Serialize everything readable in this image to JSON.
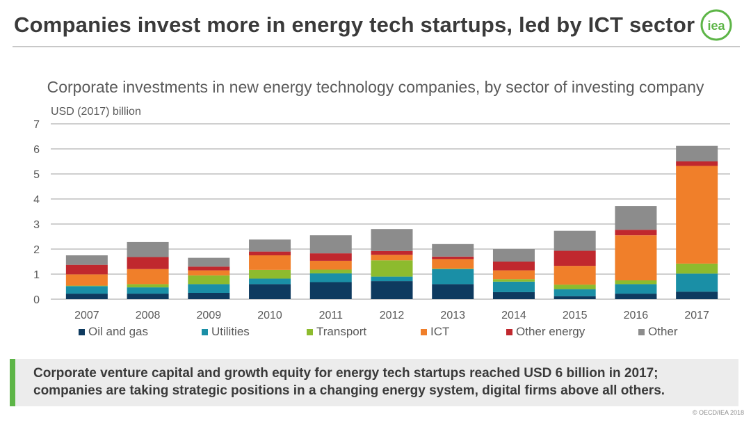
{
  "header": {
    "title": "Companies invest more in energy tech startups, led by ICT sector",
    "logo_text": "iea"
  },
  "chart_data": {
    "type": "bar",
    "stacked": true,
    "title": "Corporate investments in new energy technology companies, by sector of investing company",
    "ylabel": "USD (2017) billion",
    "xlabel": "",
    "ylim": [
      0,
      7
    ],
    "yticks": [
      0,
      1,
      2,
      3,
      4,
      5,
      6,
      7
    ],
    "grid": true,
    "legend_position": "bottom",
    "categories": [
      "2007",
      "2008",
      "2009",
      "2010",
      "2011",
      "2012",
      "2013",
      "2014",
      "2015",
      "2016",
      "2017"
    ],
    "series": [
      {
        "name": "Oil and gas",
        "color": "#0e3a5f",
        "values": [
          0.22,
          0.22,
          0.25,
          0.6,
          0.68,
          0.72,
          0.6,
          0.28,
          0.12,
          0.22,
          0.3
        ]
      },
      {
        "name": "Utilities",
        "color": "#1a8fa6",
        "values": [
          0.3,
          0.25,
          0.35,
          0.22,
          0.35,
          0.18,
          0.6,
          0.42,
          0.28,
          0.38,
          0.72
        ]
      },
      {
        "name": "Transport",
        "color": "#8dbb2e",
        "values": [
          0.02,
          0.13,
          0.35,
          0.35,
          0.15,
          0.65,
          0.02,
          0.1,
          0.18,
          0.15,
          0.4
        ]
      },
      {
        "name": "ICT",
        "color": "#f07f2a",
        "values": [
          0.45,
          0.6,
          0.2,
          0.58,
          0.35,
          0.22,
          0.38,
          0.35,
          0.75,
          1.8,
          3.9
        ]
      },
      {
        "name": "Other energy",
        "color": "#c0282e",
        "values": [
          0.38,
          0.48,
          0.15,
          0.15,
          0.3,
          0.15,
          0.1,
          0.35,
          0.6,
          0.22,
          0.18
        ]
      },
      {
        "name": "Other",
        "color": "#8c8c8c",
        "values": [
          0.38,
          0.6,
          0.35,
          0.48,
          0.72,
          0.88,
          0.5,
          0.5,
          0.8,
          0.95,
          0.62
        ]
      }
    ]
  },
  "callout": {
    "text": "Corporate venture capital and growth equity for energy tech startups reached USD 6 billion in 2017; companies are taking strategic positions in a changing energy system, digital firms above all others."
  },
  "footer": {
    "copyright": "© OECD/IEA 2018"
  }
}
